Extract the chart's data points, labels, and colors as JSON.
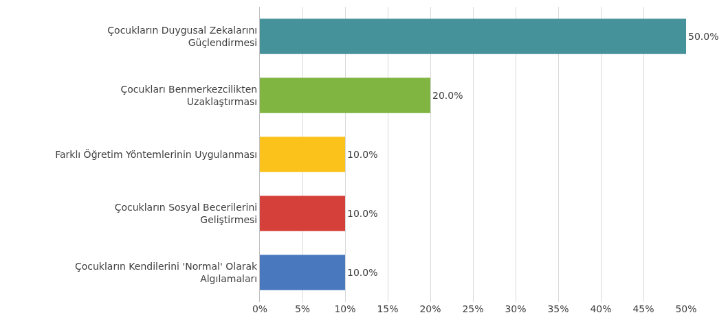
{
  "chart_data": {
    "type": "bar",
    "orientation": "horizontal",
    "categories": [
      "Çocukların Duygusal Zekalarını Güçlendirmesi",
      "Çocukları Benmerkezcilikten Uzaklaştırması",
      "Farklı Öğretim Yöntemlerinin Uygulanması",
      "Çocukların Sosyal Becerilerini Geliştirmesi",
      "Çocukların Kendilerini 'Normal' Olarak Algılamaları"
    ],
    "values": [
      50,
      20,
      10,
      10,
      10
    ],
    "colors": [
      "#46929b",
      "#7fb540",
      "#fbc21b",
      "#d6403a",
      "#4a78bf"
    ],
    "value_labels": [
      "50.0%",
      "20.0%",
      "10.0%",
      "10.0%",
      "10.0%"
    ],
    "xlim": [
      0,
      50
    ],
    "xticks": [
      {
        "value": 0,
        "label": "0%"
      },
      {
        "value": 5,
        "label": "5%"
      },
      {
        "value": 10,
        "label": "10%"
      },
      {
        "value": 15,
        "label": "15%"
      },
      {
        "value": 20,
        "label": "20%"
      },
      {
        "value": 25,
        "label": "25%"
      },
      {
        "value": 30,
        "label": "30%"
      },
      {
        "value": 35,
        "label": "35%"
      },
      {
        "value": 40,
        "label": "40%"
      },
      {
        "value": 45,
        "label": "45%"
      },
      {
        "value": 50,
        "label": "50%"
      }
    ],
    "grid": "x"
  }
}
